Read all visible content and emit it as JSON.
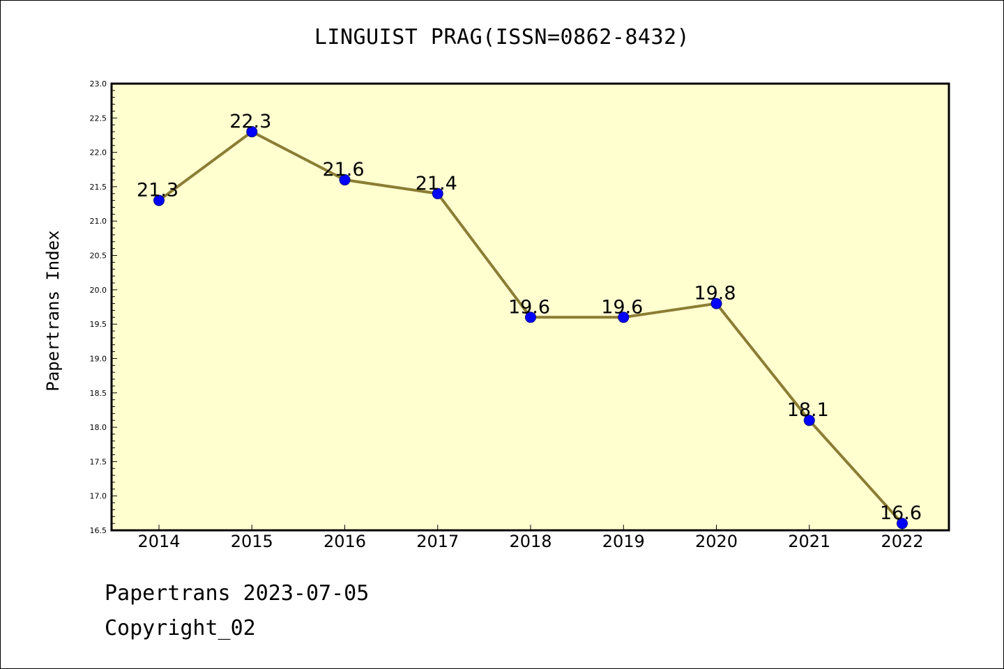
{
  "chart_data": {
    "type": "line",
    "title": "LINGUIST PRAG(ISSN=0862-8432)",
    "xlabel": "",
    "ylabel": "Papertrans Index",
    "categories": [
      "2014",
      "2015",
      "2016",
      "2017",
      "2018",
      "2019",
      "2020",
      "2021",
      "2022"
    ],
    "series": [
      {
        "values": [
          21.3,
          22.3,
          21.6,
          21.4,
          19.6,
          19.6,
          19.8,
          18.1,
          16.6
        ],
        "value_labels": [
          "21.3",
          "22.3",
          "21.6",
          "21.4",
          "19.6",
          "19.6",
          "19.8",
          "18.1",
          "16.6"
        ]
      }
    ],
    "ylim": [
      16.5,
      23.0
    ],
    "yticks": [
      "16.5",
      "17.0",
      "17.5",
      "18.0",
      "18.5",
      "19.0",
      "19.5",
      "20.0",
      "20.5",
      "21.0",
      "21.5",
      "22.0",
      "22.5",
      "23.0"
    ],
    "grid": false,
    "colors": {
      "plot_background": "#ffffd0",
      "line": "#8b7d34",
      "marker": "#0000ff",
      "marker_edge": "#00008b"
    }
  },
  "footer": {
    "line1": "Papertrans 2023-07-05",
    "line2": "Copyright_02"
  }
}
